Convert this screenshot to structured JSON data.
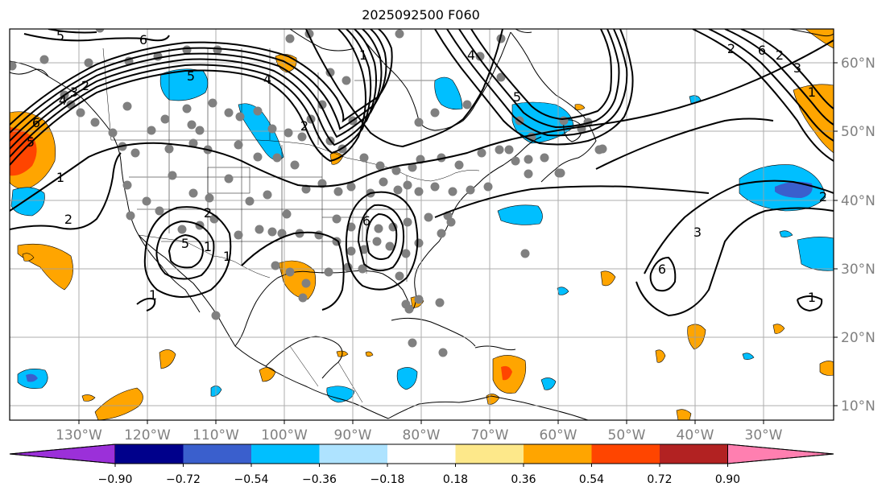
{
  "title": "2025092500 F060",
  "longitude_labels": [
    "130°W",
    "120°W",
    "110°W",
    "100°W",
    "90°W",
    "80°W",
    "70°W",
    "60°W",
    "50°W",
    "40°W",
    "30°W"
  ],
  "latitude_labels": [
    "10°N",
    "20°N",
    "30°N",
    "40°N",
    "50°N",
    "60°N"
  ],
  "colorbar": {
    "tick_labels": [
      "−0.90",
      "−0.72",
      "−0.54",
      "−0.36",
      "−0.18",
      "0.18",
      "0.36",
      "0.54",
      "0.72",
      "0.90"
    ],
    "colors": [
      "#9b30d9",
      "#00008b",
      "#3a5fcd",
      "#00bfff",
      "#aee3ff",
      "#ffffff",
      "#fde88a",
      "#ffa500",
      "#ff4500",
      "#b22222",
      "#ff7fb0"
    ]
  },
  "contour_labels": [
    "5",
    "6",
    "5",
    "4",
    "1",
    "2",
    "6",
    "5",
    "4",
    "3",
    "2",
    "1",
    "2",
    "2",
    "1",
    "5",
    "1",
    "1",
    "6",
    "5",
    "4",
    "3",
    "2",
    "6",
    "2",
    "1",
    "3",
    "2",
    "1",
    "6"
  ],
  "colors": {
    "frame": "#000000",
    "grid": "#a0a0a0",
    "station": "#808080",
    "coast": "#000000"
  }
}
